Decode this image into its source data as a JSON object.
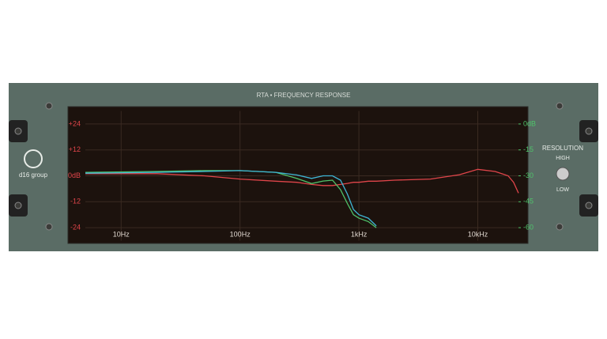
{
  "chart_data": {
    "type": "line",
    "title": "RTA • FREQUENCY RESPONSE",
    "log_x": true,
    "grid": true,
    "x": [
      5,
      20,
      50,
      100,
      200,
      300,
      400,
      500,
      600,
      700,
      800,
      900,
      1000,
      1200,
      1400,
      2000,
      4000,
      7000,
      10000,
      14000,
      18000,
      20000,
      22000
    ],
    "xlim": [
      5,
      22000
    ],
    "xticks": [
      {
        "value": 10,
        "label": "10Hz"
      },
      {
        "value": 100,
        "label": "100Hz"
      },
      {
        "value": 1000,
        "label": "1kHz"
      },
      {
        "value": 10000,
        "label": "10kHz"
      }
    ],
    "ylim": [
      -30,
      30
    ],
    "yticks": [
      {
        "value": 24,
        "label": "+24"
      },
      {
        "value": 12,
        "label": "+12"
      },
      {
        "value": 0,
        "label": "0dB"
      },
      -12,
      -24
    ],
    "y2lim": [
      -67.5,
      7.5
    ],
    "y2ticks": [
      {
        "value": 0,
        "label": "0dB"
      },
      -15,
      -30,
      -45,
      -60
    ],
    "series": [
      {
        "color": "#e0454a",
        "values": [
          1,
          1,
          0,
          -1.5,
          -2.5,
          -3,
          -4,
          -4.5,
          -4.5,
          -4,
          -3.5,
          -3,
          -3,
          -2.5,
          -2.5,
          -2,
          -1.5,
          0.5,
          3,
          2,
          0,
          -3,
          -8
        ]
      },
      {
        "color": "#4fc36a",
        "axis": "y2",
        "values": [
          -28,
          -27.5,
          -27,
          -27,
          -28,
          -31.5,
          -34.5,
          -33,
          -32.5,
          -38,
          -46,
          -52.5,
          -54.5,
          -56.5,
          -60,
          null,
          null,
          null,
          null,
          null,
          null,
          null,
          null
        ]
      },
      {
        "color": "#3fb6d6",
        "axis": "y2",
        "values": [
          -28.5,
          -28,
          -27.5,
          -27,
          -28,
          -29.5,
          -31.5,
          -30,
          -30,
          -32.5,
          -40.5,
          -49.5,
          -52.5,
          -54.5,
          -59,
          null,
          null,
          null,
          null,
          null,
          null,
          null,
          null
        ]
      }
    ]
  },
  "brand": "d16 group",
  "resolution": {
    "label": "RESOLUTION",
    "high": "HIGH",
    "low": "LOW"
  }
}
